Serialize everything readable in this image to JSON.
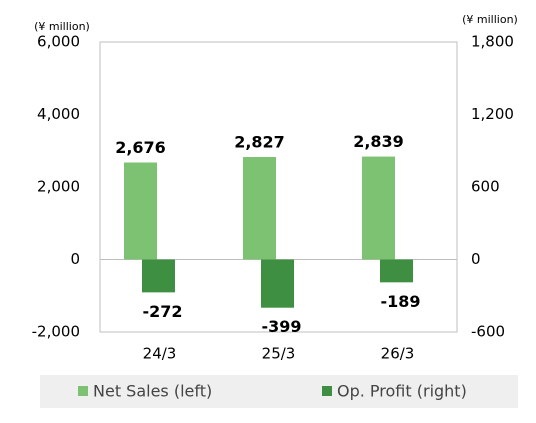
{
  "chart_data": {
    "type": "bar",
    "y_label": "(¥ million)",
    "y2_label": "(¥ million)",
    "categories": [
      "24/3",
      "25/3",
      "26/3"
    ],
    "series": [
      {
        "name": "Net Sales (left)",
        "color": "#7cc272",
        "values": [
          2676,
          2827,
          2839
        ],
        "value_labels": [
          "2,676",
          "2,827",
          "2,839"
        ]
      },
      {
        "name": "Op. Profit (right)",
        "color": "#3f8f43",
        "axis": "y2",
        "values": [
          -272,
          -399,
          -189
        ]
      }
    ],
    "ylim": [
      -2000,
      6000
    ],
    "yticks": [
      {
        "value": -2000,
        "label": "-2,000"
      },
      0,
      {
        "value": 2000,
        "label": "2,000"
      },
      {
        "value": 4000,
        "label": "4,000"
      },
      {
        "value": 6000,
        "label": "6,000"
      }
    ],
    "y2lim": [
      -600,
      1800
    ],
    "y2ticks": [
      -600,
      0,
      600,
      {
        "value": 1200,
        "label": "1,200"
      },
      {
        "value": 1800,
        "label": "1,800"
      }
    ],
    "grid": false,
    "legend": "bottom"
  }
}
